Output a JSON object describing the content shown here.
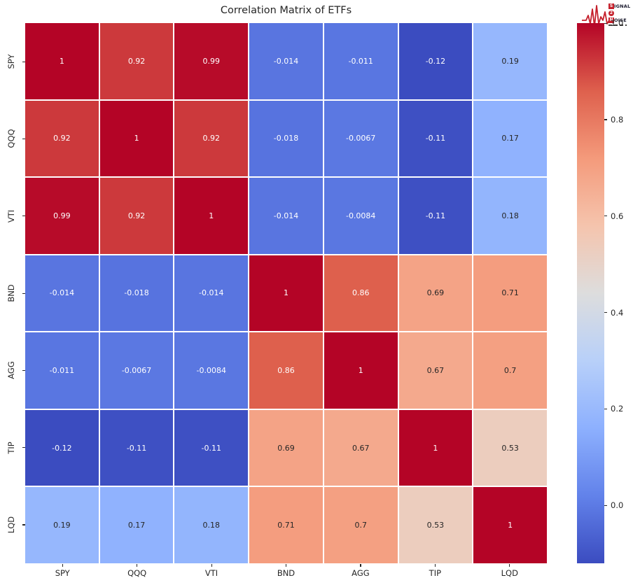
{
  "title": "Correlation Matrix of ETFs",
  "logo": {
    "word1_initial": "S",
    "word1_rest": "IGNAL",
    "word2": "2",
    "word3_initial": "N",
    "word3_rest": "OISE"
  },
  "chart_data": {
    "type": "heatmap",
    "title": "Correlation Matrix of ETFs",
    "categories": [
      "SPY",
      "QQQ",
      "VTI",
      "BND",
      "AGG",
      "TIP",
      "LQD"
    ],
    "matrix": [
      [
        1,
        0.92,
        0.99,
        -0.014,
        -0.011,
        -0.12,
        0.19
      ],
      [
        0.92,
        1,
        0.92,
        -0.018,
        -0.0067,
        -0.11,
        0.17
      ],
      [
        0.99,
        0.92,
        1,
        -0.014,
        -0.0084,
        -0.11,
        0.18
      ],
      [
        -0.014,
        -0.018,
        -0.014,
        1,
        0.86,
        0.69,
        0.71
      ],
      [
        -0.011,
        -0.0067,
        -0.0084,
        0.86,
        1,
        0.67,
        0.7
      ],
      [
        -0.12,
        -0.11,
        -0.11,
        0.69,
        0.67,
        1,
        0.53
      ],
      [
        0.19,
        0.17,
        0.18,
        0.71,
        0.7,
        0.53,
        1
      ]
    ],
    "annotations": [
      [
        "1",
        "0.92",
        "0.99",
        "-0.014",
        "-0.011",
        "-0.12",
        "0.19"
      ],
      [
        "0.92",
        "1",
        "0.92",
        "-0.018",
        "-0.0067",
        "-0.11",
        "0.17"
      ],
      [
        "0.99",
        "0.92",
        "1",
        "-0.014",
        "-0.0084",
        "-0.11",
        "0.18"
      ],
      [
        "-0.014",
        "-0.018",
        "-0.014",
        "1",
        "0.86",
        "0.69",
        "0.71"
      ],
      [
        "-0.011",
        "-0.0067",
        "-0.0084",
        "0.86",
        "1",
        "0.67",
        "0.7"
      ],
      [
        "-0.12",
        "-0.11",
        "-0.11",
        "0.69",
        "0.67",
        "1",
        "0.53"
      ],
      [
        "0.19",
        "0.17",
        "0.18",
        "0.71",
        "0.7",
        "0.53",
        "1"
      ]
    ],
    "colormap": "coolwarm",
    "vmin": -0.12,
    "vmax": 1.0,
    "colorbar_ticks": [
      "1.0",
      "0.8",
      "0.6",
      "0.4",
      "0.2",
      "0.0"
    ],
    "colorbar_tick_values": [
      1.0,
      0.8,
      0.6,
      0.4,
      0.2,
      0.0
    ],
    "grid": false,
    "legend_position": "right-colorbar"
  },
  "colors": {
    "background": "#ffffff",
    "cell_grid_lines": "#ffffff",
    "annotation_dark": "#262626",
    "annotation_light": "#ffffff",
    "axis_text": "#262626",
    "logo_red": "#c5202c",
    "cmap_anchors": [
      {
        "t": 0.0,
        "hex": "#3b4cc0"
      },
      {
        "t": 0.125,
        "hex": "#6282ea"
      },
      {
        "t": 0.25,
        "hex": "#8db0fe"
      },
      {
        "t": 0.375,
        "hex": "#b8d0f9"
      },
      {
        "t": 0.5,
        "hex": "#dddddd"
      },
      {
        "t": 0.625,
        "hex": "#f5c4ad"
      },
      {
        "t": 0.75,
        "hex": "#f49a7b"
      },
      {
        "t": 0.875,
        "hex": "#de604d"
      },
      {
        "t": 1.0,
        "hex": "#b40426"
      }
    ]
  }
}
